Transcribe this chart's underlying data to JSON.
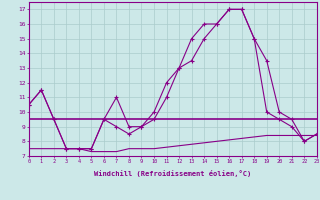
{
  "xlabel": "Windchill (Refroidissement éolien,°C)",
  "background_color": "#cce8e8",
  "grid_color": "#aacccc",
  "line_color": "#880088",
  "ylim": [
    7,
    17.5
  ],
  "xlim": [
    0,
    23
  ],
  "yticks": [
    7,
    8,
    9,
    10,
    11,
    12,
    13,
    14,
    15,
    16,
    17
  ],
  "xticks": [
    0,
    1,
    2,
    3,
    4,
    5,
    6,
    7,
    8,
    9,
    10,
    11,
    12,
    13,
    14,
    15,
    16,
    17,
    18,
    19,
    20,
    21,
    22,
    23
  ],
  "series1": [
    10.5,
    11.5,
    9.5,
    7.5,
    7.5,
    7.5,
    9.5,
    11.0,
    9.0,
    9.0,
    9.5,
    11.0,
    13.0,
    13.5,
    15.0,
    16.0,
    17.0,
    17.0,
    15.0,
    10.0,
    9.5,
    9.0,
    8.0,
    8.5
  ],
  "series2": [
    10.5,
    11.5,
    9.5,
    7.5,
    7.5,
    7.5,
    9.5,
    9.0,
    8.5,
    9.0,
    10.0,
    12.0,
    13.0,
    15.0,
    16.0,
    16.0,
    17.0,
    17.0,
    15.0,
    13.5,
    10.0,
    9.5,
    8.0,
    8.5
  ],
  "series3_val": 9.5,
  "series4": [
    7.5,
    7.5,
    7.5,
    7.5,
    7.5,
    7.3,
    7.3,
    7.3,
    7.5,
    7.5,
    7.5,
    7.6,
    7.7,
    7.8,
    7.9,
    8.0,
    8.1,
    8.2,
    8.3,
    8.4,
    8.4,
    8.4,
    8.4,
    8.4
  ]
}
